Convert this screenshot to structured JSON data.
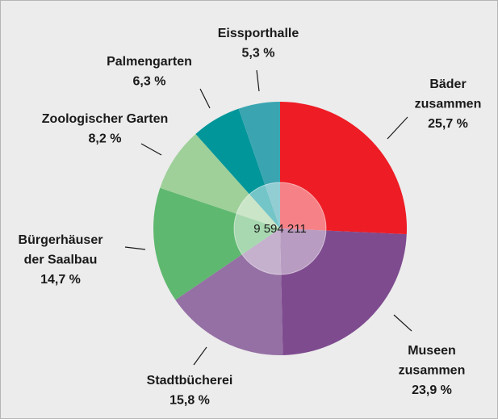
{
  "chart_data": {
    "type": "pie",
    "categories": [
      "Bäder\nzusammen",
      "Museen\nzusammen",
      "Stadtbücherei",
      "Bürgerhäuser\nder Saalbau",
      "Zoologischer Garten",
      "Palmengarten",
      "Eissporthalle"
    ],
    "values": [
      25.7,
      23.9,
      15.8,
      14.7,
      8.2,
      6.3,
      5.3
    ],
    "value_labels": [
      "25,7 %",
      "23,9 %",
      "15,8 %",
      "14,7 %",
      "8,2 %",
      "6,3 %",
      "5,3 %"
    ],
    "colors": [
      "#ee1c25",
      "#7f4b8f",
      "#9570a4",
      "#5fb86f",
      "#9fd09a",
      "#00969a",
      "#3aa5b1"
    ],
    "center_label": "9 594 211"
  }
}
